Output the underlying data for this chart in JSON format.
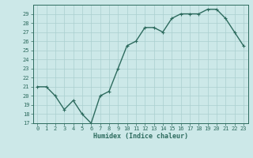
{
  "title": "",
  "xlabel": "Humidex (Indice chaleur)",
  "ylabel": "",
  "x": [
    0,
    1,
    2,
    3,
    4,
    5,
    6,
    7,
    8,
    9,
    10,
    11,
    12,
    13,
    14,
    15,
    16,
    17,
    18,
    19,
    20,
    21,
    22,
    23
  ],
  "y": [
    21.0,
    21.0,
    20.0,
    18.5,
    19.5,
    18.0,
    17.0,
    20.0,
    20.5,
    23.0,
    25.5,
    26.0,
    27.5,
    27.5,
    27.0,
    28.5,
    29.0,
    29.0,
    29.0,
    29.5,
    29.5,
    28.5,
    27.0,
    25.5
  ],
  "line_color": "#2d6b5e",
  "bg_color": "#cce8e8",
  "grid_color": "#aacfcf",
  "tick_color": "#2d6b5e",
  "label_color": "#2d6b5e",
  "ylim": [
    17,
    30
  ],
  "xlim": [
    -0.5,
    23.5
  ],
  "yticks": [
    17,
    18,
    19,
    20,
    21,
    22,
    23,
    24,
    25,
    26,
    27,
    28,
    29
  ],
  "xticks": [
    0,
    1,
    2,
    3,
    4,
    5,
    6,
    7,
    8,
    9,
    10,
    11,
    12,
    13,
    14,
    15,
    16,
    17,
    18,
    19,
    20,
    21,
    22,
    23
  ],
  "marker": "+",
  "linewidth": 1.0,
  "markersize": 3.5,
  "tick_fontsize": 5.0,
  "xlabel_fontsize": 6.0
}
